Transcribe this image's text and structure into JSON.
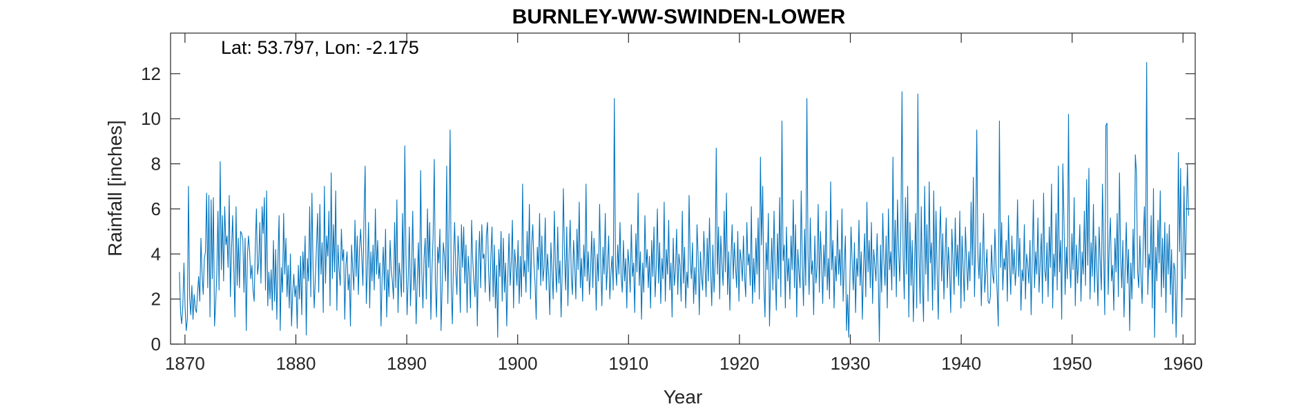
{
  "chart_data": {
    "type": "line",
    "title": "BURNLEY-WW-SWINDEN-LOWER",
    "annotation": "Lat: 53.797, Lon: -2.175",
    "xlabel": "Year",
    "ylabel": "Rainfall [inches]",
    "xlim": [
      1868.7,
      1961.1
    ],
    "ylim": [
      0,
      13.8
    ],
    "xticks": [
      1870,
      1880,
      1890,
      1900,
      1910,
      1920,
      1930,
      1940,
      1950,
      1960
    ],
    "yticks": [
      0,
      2,
      4,
      6,
      8,
      10,
      12
    ],
    "grid": false,
    "line_color": "#0072BD",
    "series": [
      {
        "frequency": "monthly",
        "start": 1869.5,
        "end": 1960.5,
        "values": [
          3.2,
          1.4,
          0.9,
          1.7,
          3.6,
          1.6,
          0.6,
          1.1,
          7.0,
          2.1,
          1.3,
          2.6,
          1.1,
          2.2,
          1.6,
          1.4,
          2.3,
          3.0,
          1.9,
          4.7,
          3.1,
          2.2,
          3.8,
          4.1,
          6.7,
          2.5,
          6.6,
          1.2,
          6.4,
          2.9,
          6.5,
          0.8,
          1.8,
          3.1,
          5.9,
          2.4,
          8.1,
          3.3,
          5.7,
          2.8,
          6.1,
          4.4,
          4.8,
          3.4,
          6.6,
          2.1,
          4.2,
          5.7,
          3.4,
          1.2,
          6.1,
          2.6,
          4.7,
          2.5,
          5.0,
          4.9,
          4.6,
          2.3,
          4.7,
          0.6,
          3.9,
          4.8,
          4.1,
          2.9,
          3.5,
          2.4,
          1.9,
          4.3,
          6.0,
          3.1,
          3.6,
          5.4,
          2.7,
          6.1,
          4.9,
          6.5,
          2.4,
          6.8,
          1.7,
          3.2,
          2.0,
          3.3,
          1.5,
          4.6,
          1.9,
          4.2,
          1.1,
          3.8,
          5.7,
          0.6,
          3.4,
          2.3,
          5.8,
          3.1,
          4.7,
          2.1,
          3.5,
          1.6,
          4.0,
          0.8,
          2.3,
          3.1,
          2.1,
          2.6,
          0.7,
          3.5,
          2.0,
          3.9,
          1.3,
          4.1,
          2.9,
          4.8,
          0.4,
          3.8,
          2.8,
          6.1,
          2.1,
          6.7,
          3.4,
          1.6,
          2.9,
          4.3,
          5.8,
          2.3,
          6.2,
          3.1,
          4.5,
          1.4,
          7.0,
          2.7,
          4.8,
          3.9,
          5.9,
          1.7,
          7.6,
          2.9,
          5.3,
          3.2,
          6.8,
          1.5,
          4.4,
          3.3,
          2.6,
          5.1,
          3.7,
          4.2,
          1.1,
          3.5,
          4.1,
          2.4,
          3.1,
          0.8,
          4.4,
          3.3,
          2.4,
          5.5,
          3.0,
          4.8,
          2.2,
          4.2,
          5.1,
          3.9,
          2.6,
          5.7,
          7.9,
          1.8,
          3.3,
          5.4,
          1.6,
          4.1,
          2.8,
          4.4,
          2.4,
          6.0,
          3.1,
          4.6,
          2.9,
          3.6,
          0.8,
          3.0,
          4.3,
          2.4,
          5.1,
          1.2,
          3.3,
          2.1,
          4.6,
          3.3,
          2.8,
          2.0,
          5.4,
          2.5,
          6.4,
          1.4,
          3.6,
          3.0,
          2.1,
          5.8,
          2.3,
          8.8,
          4.0,
          1.3,
          2.9,
          5.2,
          1.7,
          3.3,
          5.9,
          2.4,
          3.8,
          0.9,
          2.8,
          4.5,
          2.1,
          7.7,
          3.2,
          1.6,
          3.8,
          4.7,
          2.0,
          6.0,
          3.4,
          5.4,
          1.1,
          3.3,
          4.8,
          8.2,
          2.7,
          1.2,
          4.3,
          3.6,
          5.1,
          0.6,
          2.6,
          4.5,
          3.9,
          2.8,
          7.9,
          1.8,
          5.1,
          9.5,
          2.6,
          0.9,
          3.8,
          5.4,
          3.3,
          2.2,
          4.8,
          3.8,
          1.4,
          5.3,
          3.4,
          5.2,
          2.7,
          4.4,
          1.4,
          3.9,
          3.1,
          1.6,
          5.5,
          3.7,
          2.8,
          2.1,
          4.6,
          0.8,
          3.6,
          5.0,
          2.5,
          5.3,
          3.8,
          4.0,
          2.3,
          4.8,
          5.4,
          3.2,
          1.9,
          3.9,
          5.2,
          2.1,
          4.4,
          1.6,
          3.5,
          0.3,
          4.2,
          3.0,
          5.0,
          1.9,
          4.7,
          2.3,
          3.6,
          0.8,
          3.1,
          4.9,
          2.6,
          3.6,
          5.5,
          1.6,
          4.2,
          3.5,
          2.6,
          4.6,
          1.8,
          3.9,
          2.1,
          7.1,
          3.0,
          3.7,
          2.3,
          5.0,
          3.2,
          6.2,
          2.0,
          4.4,
          5.3,
          3.6,
          2.7,
          1.1,
          4.3,
          3.3,
          5.8,
          2.6,
          4.8,
          2.8,
          3.4,
          5.6,
          2.4,
          4.0,
          3.1,
          1.3,
          4.5,
          3.2,
          2.0,
          5.9,
          3.5,
          2.3,
          5.2,
          2.7,
          3.7,
          1.2,
          3.3,
          6.9,
          4.0,
          2.4,
          5.2,
          1.7,
          3.9,
          5.5,
          3.0,
          2.2,
          4.6,
          3.5,
          2.0,
          5.1,
          3.3,
          6.3,
          2.5,
          3.8,
          1.9,
          4.4,
          3.0,
          7.1,
          2.8,
          4.1,
          2.2,
          3.2,
          5.0,
          2.5,
          4.7,
          3.8,
          1.5,
          4.0,
          2.8,
          6.2,
          3.6,
          1.7,
          4.3,
          3.1,
          5.8,
          2.4,
          3.5,
          4.8,
          2.0,
          3.2,
          3.9,
          2.4,
          10.9,
          3.6,
          2.6,
          4.4,
          3.1,
          5.4,
          3.0,
          2.3,
          4.6,
          2.8,
          3.8,
          1.6,
          4.2,
          3.5,
          2.3,
          5.3,
          3.0,
          3.6,
          1.4,
          4.9,
          3.2,
          6.7,
          2.6,
          4.1,
          1.1,
          3.6,
          2.3,
          5.7,
          3.4,
          4.2,
          2.5,
          3.9,
          1.6,
          4.6,
          3.0,
          5.2,
          2.1,
          3.4,
          6.0,
          2.7,
          4.5,
          1.8,
          3.8,
          2.9,
          6.3,
          1.9,
          4.2,
          3.1,
          5.5,
          2.4,
          3.6,
          1.2,
          4.7,
          2.6,
          3.3,
          5.1,
          2.2,
          4.0,
          3.5,
          1.9,
          5.9,
          2.7,
          4.3,
          1.6,
          3.2,
          2.5,
          6.6,
          3.7,
          2.9,
          4.5,
          1.8,
          3.4,
          2.2,
          5.3,
          3.9,
          1.3,
          4.1,
          3.0,
          2.4,
          5.0,
          3.6,
          2.1,
          4.7,
          2.8,
          5.6,
          3.3,
          1.7,
          4.4,
          2.3,
          3.6,
          8.7,
          3.1,
          5.2,
          2.0,
          4.8,
          3.5,
          2.6,
          5.9,
          3.2,
          6.7,
          2.2,
          4.1,
          1.5,
          3.8,
          5.3,
          2.9,
          4.5,
          3.4,
          2.5,
          5.0,
          1.9,
          4.2,
          3.7,
          2.8,
          4.8,
          3.0,
          2.1,
          5.4,
          3.5,
          4.0,
          2.6,
          6.1,
          1.8,
          3.8,
          2.3,
          4.7,
          3.1,
          5.6,
          2.0,
          8.3,
          4.4,
          7.0,
          2.7,
          1.2,
          4.5,
          3.3,
          5.8,
          0.8,
          3.0,
          4.7,
          2.4,
          5.9,
          3.4,
          1.5,
          4.9,
          2.9,
          6.5,
          2.1,
          9.9,
          3.7,
          4.4,
          1.6,
          5.2,
          2.8,
          3.8,
          2.0,
          4.8,
          3.3,
          6.4,
          2.5,
          5.3,
          1.2,
          4.2,
          3.2,
          2.5,
          6.8,
          3.5,
          1.7,
          5.1,
          2.6,
          10.9,
          4.0,
          2.2,
          5.6,
          3.1,
          3.7,
          1.3,
          4.8,
          2.7,
          3.4,
          6.2,
          2.3,
          5.0,
          3.6,
          1.8,
          4.4,
          3.0,
          5.9,
          2.4,
          3.8,
          2.0,
          7.2,
          3.3,
          4.6,
          1.6,
          3.9,
          2.8,
          5.5,
          3.1,
          4.2,
          2.6,
          6.0,
          1.9,
          3.5,
          4.8,
          0.6,
          2.2,
          0.3,
          2.9,
          5.2,
          3.6,
          2.4,
          4.5,
          1.4,
          3.8,
          3.0,
          5.5,
          2.6,
          4.1,
          1.1,
          3.4,
          4.9,
          2.1,
          6.3,
          3.2,
          4.6,
          2.5,
          5.4,
          1.8,
          4.2,
          3.5,
          2.8,
          4.9,
          3.1,
          0.1,
          4.4,
          2.3,
          5.8,
          3.7,
          2.6,
          4.8,
          1.6,
          6.0,
          3.3,
          4.1,
          2.4,
          8.3,
          3.0,
          5.5,
          2.1,
          6.4,
          4.2,
          2.8,
          5.1,
          11.2,
          3.9,
          2.0,
          6.5,
          3.1,
          7.0,
          1.2,
          5.4,
          2.6,
          4.6,
          1.0,
          3.4,
          5.8,
          1.6,
          11.1,
          4.0,
          1.8,
          6.1,
          2.8,
          1.0,
          7.0,
          3.1,
          5.3,
          1.9,
          7.2,
          3.6,
          4.5,
          1.5,
          6.8,
          2.4,
          5.9,
          3.2,
          1.1,
          4.6,
          6.1,
          2.8,
          4.9,
          2.0,
          3.9,
          5.6,
          2.5,
          4.3,
          3.3,
          1.4,
          5.1,
          3.8,
          2.2,
          5.6,
          3.0,
          4.4,
          2.6,
          5.9,
          1.6,
          4.8,
          3.4,
          1.9,
          5.2,
          3.7,
          2.4,
          4.1,
          2.8,
          6.3,
          3.5,
          7.4,
          2.1,
          4.6,
          9.5,
          3.9,
          2.9,
          4.5,
          1.7,
          3.6,
          5.8,
          2.3,
          3.2,
          4.2,
          1.9,
          1.8,
          2.1,
          4.4,
          3.1,
          2.7,
          5.1,
          3.5,
          2.3,
          0.8,
          9.9,
          3.4,
          5.4,
          2.4,
          3.8,
          3.3,
          4.6,
          1.9,
          5.7,
          3.6,
          2.2,
          4.8,
          3.1,
          4.2,
          2.6,
          3.5,
          6.4,
          3.0,
          4.7,
          1.5,
          3.3,
          2.8,
          5.3,
          2.0,
          4.0,
          3.5,
          2.7,
          4.6,
          1.3,
          3.8,
          6.4,
          2.5,
          4.1,
          3.1,
          5.6,
          2.3,
          3.6,
          4.9,
          1.8,
          6.7,
          3.3,
          2.8,
          4.5,
          2.1,
          5.2,
          3.4,
          7.1,
          1.6,
          4.0,
          3.0,
          5.8,
          2.4,
          7.9,
          3.2,
          4.6,
          1.1,
          8.0,
          5.5,
          2.2,
          4.3,
          2.9,
          10.2,
          3.6,
          2.5,
          4.9,
          3.3,
          6.5,
          1.7,
          4.4,
          2.7,
          3.8,
          5.3,
          1.9,
          4.1,
          3.1,
          5.9,
          2.6,
          7.3,
          3.5,
          7.8,
          2.0,
          4.5,
          3.0,
          6.2,
          2.3,
          4.8,
          3.4,
          1.7,
          5.2,
          3.7,
          2.4,
          7.1,
          4.1,
          1.3,
          9.7,
          9.8,
          2.2,
          4.4,
          5.6,
          2.8,
          3.5,
          1.5,
          4.7,
          3.2,
          5.8,
          2.1,
          7.6,
          3.9,
          2.5,
          4.6,
          1.2,
          3.3,
          5.4,
          2.7,
          4.2,
          0.6,
          3.6,
          2.0,
          5.1,
          2.9,
          8.4,
          7.6,
          3.2,
          2.5,
          4.8,
          3.0,
          1.8,
          4.5,
          6.1,
          3.4,
          12.5,
          2.2,
          4.0,
          3.3,
          5.7,
          1.6,
          6.9,
          0.3,
          4.3,
          2.8,
          5.5,
          3.6,
          6.8,
          2.1,
          4.7,
          2.5,
          5.4,
          1.4,
          4.9,
          3.1,
          5.3,
          2.2,
          4.2,
          0.9,
          3.6,
          3.3,
          0.3,
          2.7,
          8.5,
          4.1,
          7.8,
          1.2,
          3.9,
          7.0,
          2.9,
          5.4,
          8.0,
          5.7
        ]
      }
    ]
  }
}
